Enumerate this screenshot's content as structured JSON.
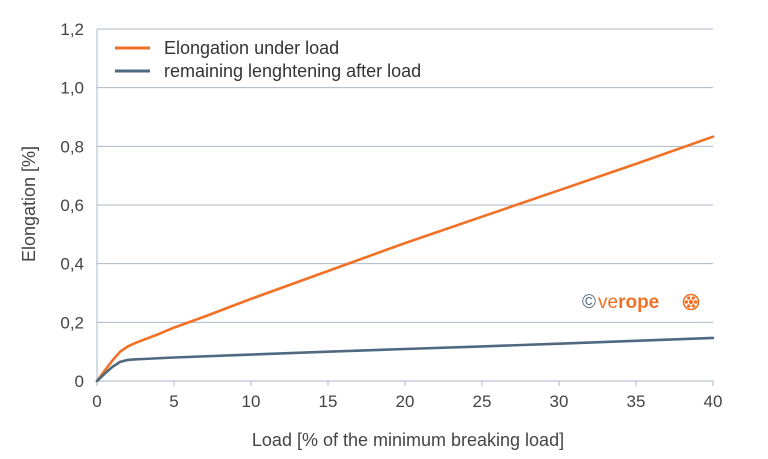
{
  "chart_data": {
    "type": "line",
    "title": "",
    "xlabel": "Load [% of the minimum breaking load]",
    "ylabel": "Elongation [%]",
    "xlim": [
      0,
      40
    ],
    "ylim": [
      0,
      1.2
    ],
    "xticks": [
      0,
      5,
      10,
      15,
      20,
      25,
      30,
      35,
      40
    ],
    "xtick_labels": [
      "0",
      "5",
      "10",
      "15",
      "20",
      "25",
      "30",
      "35",
      "40"
    ],
    "yticks": [
      0,
      0.2,
      0.4,
      0.6,
      0.8,
      1.0,
      1.2
    ],
    "ytick_labels": [
      "0",
      "0,2",
      "0,4",
      "0,6",
      "0,8",
      "1,0",
      "1,2"
    ],
    "grid": "horizontal",
    "legend_position": "top-left",
    "series": [
      {
        "name": "Elongation under load",
        "color": "#F07025",
        "x": [
          0,
          0.5,
          1,
          1.5,
          2,
          2.5,
          3,
          4,
          5,
          7,
          10,
          15,
          20,
          25,
          30,
          35,
          40
        ],
        "y": [
          0,
          0.035,
          0.07,
          0.1,
          0.118,
          0.13,
          0.14,
          0.16,
          0.182,
          0.22,
          0.28,
          0.375,
          0.47,
          0.56,
          0.65,
          0.74,
          0.833
        ]
      },
      {
        "name": "remaining lenghtening after load",
        "color": "#4F6A80",
        "x": [
          0,
          0.5,
          1,
          1.5,
          2,
          2.5,
          3,
          5,
          10,
          15,
          20,
          25,
          30,
          35,
          40
        ],
        "y": [
          0,
          0.025,
          0.048,
          0.065,
          0.072,
          0.074,
          0.075,
          0.08,
          0.09,
          0.1,
          0.109,
          0.118,
          0.127,
          0.137,
          0.147
        ]
      }
    ]
  },
  "watermark": {
    "copyright": "©",
    "brand_light": "ve",
    "brand_bold": "rope",
    "brand_color": "#F07025",
    "copyright_color": "#4F6A80"
  }
}
